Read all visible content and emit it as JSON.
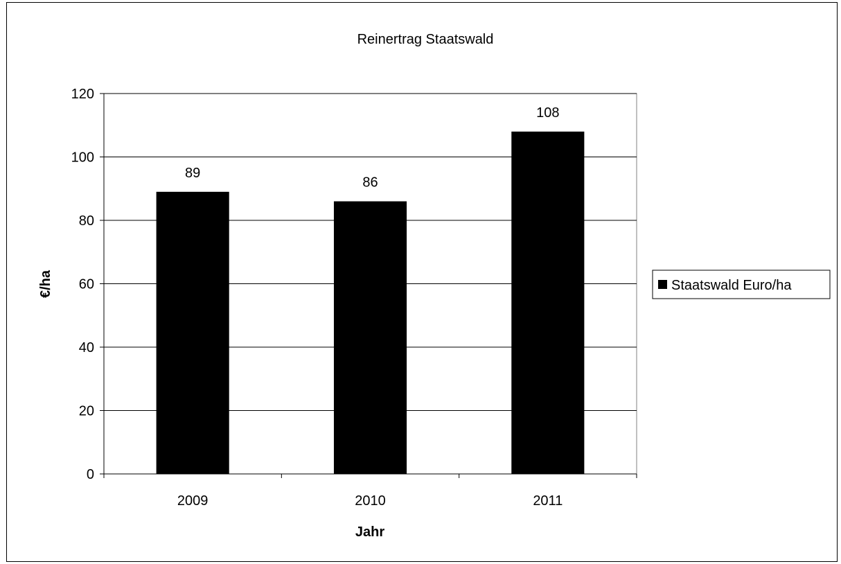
{
  "chart_data": {
    "type": "bar",
    "title": "Reinertrag Staatswald",
    "xlabel": "Jahr",
    "ylabel": "€/ha",
    "categories": [
      "2009",
      "2010",
      "2011"
    ],
    "series": [
      {
        "name": "Staatswald Euro/ha",
        "values": [
          89,
          86,
          108
        ],
        "color": "#000000"
      }
    ],
    "data_labels": [
      "89",
      "86",
      "108"
    ],
    "ylim": [
      0,
      120
    ],
    "yticks": [
      0,
      20,
      40,
      60,
      80,
      100,
      120
    ],
    "grid": true,
    "legend_position": "right",
    "plot_background": "#ffffff",
    "gridline_color": "#000000"
  }
}
